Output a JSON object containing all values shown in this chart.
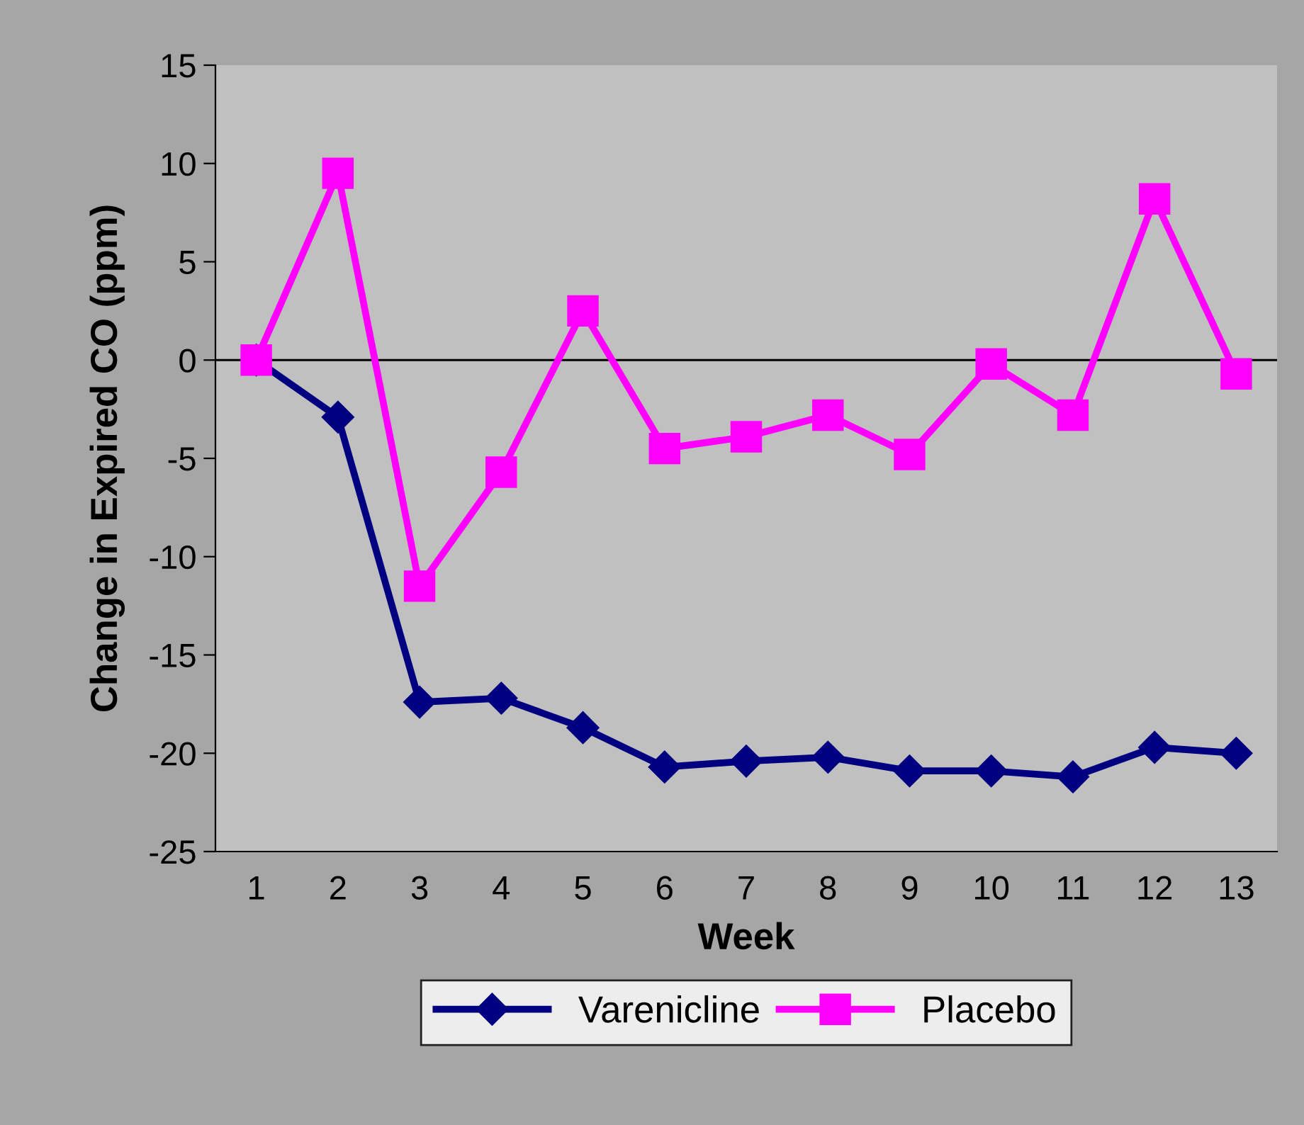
{
  "chart_data": {
    "type": "line",
    "xlabel": "Week",
    "ylabel": "Change in Expired CO (ppm)",
    "categories": [
      "1",
      "2",
      "3",
      "4",
      "5",
      "6",
      "7",
      "8",
      "9",
      "10",
      "11",
      "12",
      "13"
    ],
    "series": [
      {
        "name": "Varenicline",
        "color": "#000080",
        "marker": "diamond",
        "values": [
          0,
          -2.9,
          -17.4,
          -17.2,
          -18.7,
          -20.7,
          -20.4,
          -20.2,
          -20.9,
          -20.9,
          -21.2,
          -19.7,
          -20.0
        ]
      },
      {
        "name": "Placebo",
        "color": "#ff00ff",
        "marker": "square",
        "values": [
          0,
          9.5,
          -11.5,
          -5.7,
          2.5,
          -4.5,
          -3.9,
          -2.8,
          -4.8,
          -0.2,
          -2.8,
          8.2,
          -0.7
        ]
      }
    ],
    "ylim": [
      -25,
      15
    ],
    "yticks": [
      -25,
      -20,
      -15,
      -10,
      -5,
      0,
      5,
      10,
      15
    ],
    "ref_lines": [
      {
        "axis": "y",
        "value": 0,
        "color": "#000000"
      }
    ],
    "grid": false,
    "legend": "bottom",
    "line_style": "solid"
  }
}
